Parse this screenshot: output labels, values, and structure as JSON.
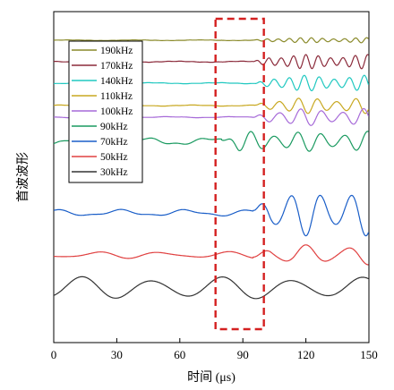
{
  "chart_data": {
    "type": "line",
    "title": "",
    "xlabel": "时间 (μs)",
    "ylabel": "首波波形",
    "xlim": [
      0,
      150
    ],
    "xticks": [
      0,
      30,
      60,
      90,
      120,
      150
    ],
    "grid": false,
    "legend_position": "upper-left",
    "highlight": {
      "x_start": 77,
      "x_end": 100,
      "style": "dashed",
      "color": "#d42020"
    },
    "series": [
      {
        "name": "190kHz",
        "color": "#8a8a2a",
        "waveform": {
          "offset": 0.0,
          "onset": 95,
          "amplitude": 0.18,
          "frequency_khz": 190,
          "pre_noise": 0.02
        }
      },
      {
        "name": "170kHz",
        "color": "#8b2a3a",
        "waveform": {
          "offset": 0.0,
          "onset": 95,
          "amplitude": 0.5,
          "frequency_khz": 170,
          "pre_noise": 0.03
        }
      },
      {
        "name": "140kHz",
        "color": "#20c8c0",
        "waveform": {
          "offset": 0.0,
          "onset": 96,
          "amplitude": 0.55,
          "frequency_khz": 140,
          "pre_noise": 0.03
        }
      },
      {
        "name": "110kHz",
        "color": "#c8a820",
        "waveform": {
          "offset": 0.0,
          "onset": 96,
          "amplitude": 0.55,
          "frequency_khz": 110,
          "pre_noise": 0.03
        }
      },
      {
        "name": "100kHz",
        "color": "#a66ad8",
        "waveform": {
          "offset": 0.0,
          "onset": 95,
          "amplitude": 0.6,
          "frequency_khz": 100,
          "pre_noise": 0.03
        }
      },
      {
        "name": "90kHz",
        "color": "#1a9a60",
        "waveform": {
          "offset": 0.0,
          "onset": 80,
          "amplitude": 0.7,
          "frequency_khz": 90,
          "pre_noise": 0.2
        }
      },
      {
        "name": "70kHz",
        "color": "#1a5ec8",
        "waveform": {
          "offset": 0.0,
          "onset": 95,
          "amplitude": 1.6,
          "frequency_khz": 70,
          "pre_noise": 0.18
        }
      },
      {
        "name": "50kHz",
        "color": "#e04040",
        "waveform": {
          "offset": 0.0,
          "onset": 95,
          "amplitude": 0.7,
          "frequency_khz": 50,
          "pre_noise": 0.18
        }
      },
      {
        "name": "30kHz",
        "color": "#333333",
        "waveform": {
          "offset": 0.0,
          "onset": 0,
          "amplitude": 0.8,
          "frequency_khz": 30,
          "pre_noise": 0.0
        }
      }
    ]
  }
}
